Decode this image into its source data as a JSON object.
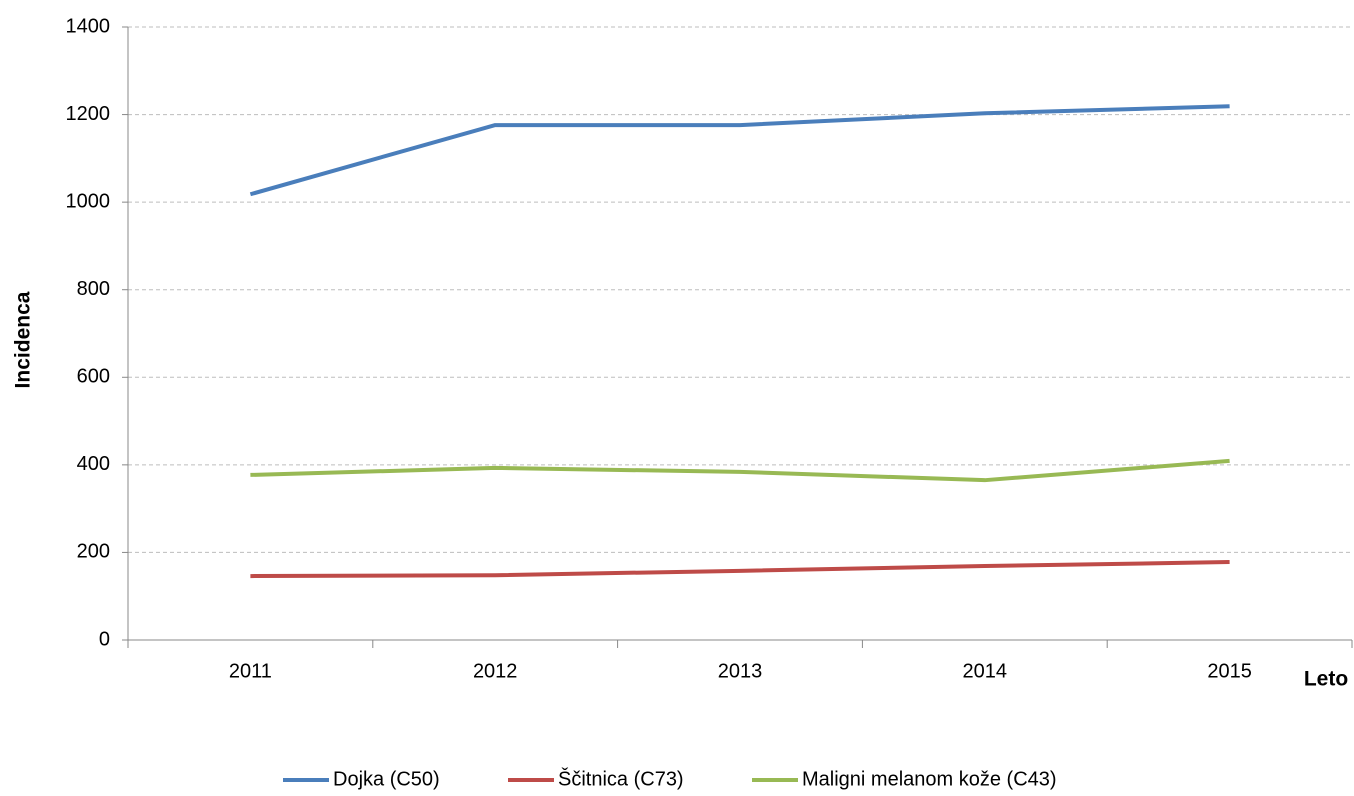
{
  "chart_data": {
    "type": "line",
    "categories": [
      "2011",
      "2012",
      "2013",
      "2014",
      "2015"
    ],
    "series": [
      {
        "name": "Dojka (C50)",
        "color": "#4a7ebb",
        "values": [
          1018,
          1176,
          1176,
          1203,
          1219
        ]
      },
      {
        "name": "Ščitnica (C73)",
        "color": "#be4b48",
        "values": [
          146,
          148,
          158,
          169,
          178
        ]
      },
      {
        "name": "Maligni melanom kože (C43)",
        "color": "#98b954",
        "values": [
          377,
          393,
          384,
          365,
          409
        ]
      }
    ],
    "y_label": "Incidenca",
    "x_label": "Leto",
    "ylim": [
      0,
      1400
    ],
    "yticks": [
      0,
      200,
      400,
      600,
      800,
      1000,
      1200,
      1400
    ],
    "grid": true,
    "legend": "bottom"
  }
}
